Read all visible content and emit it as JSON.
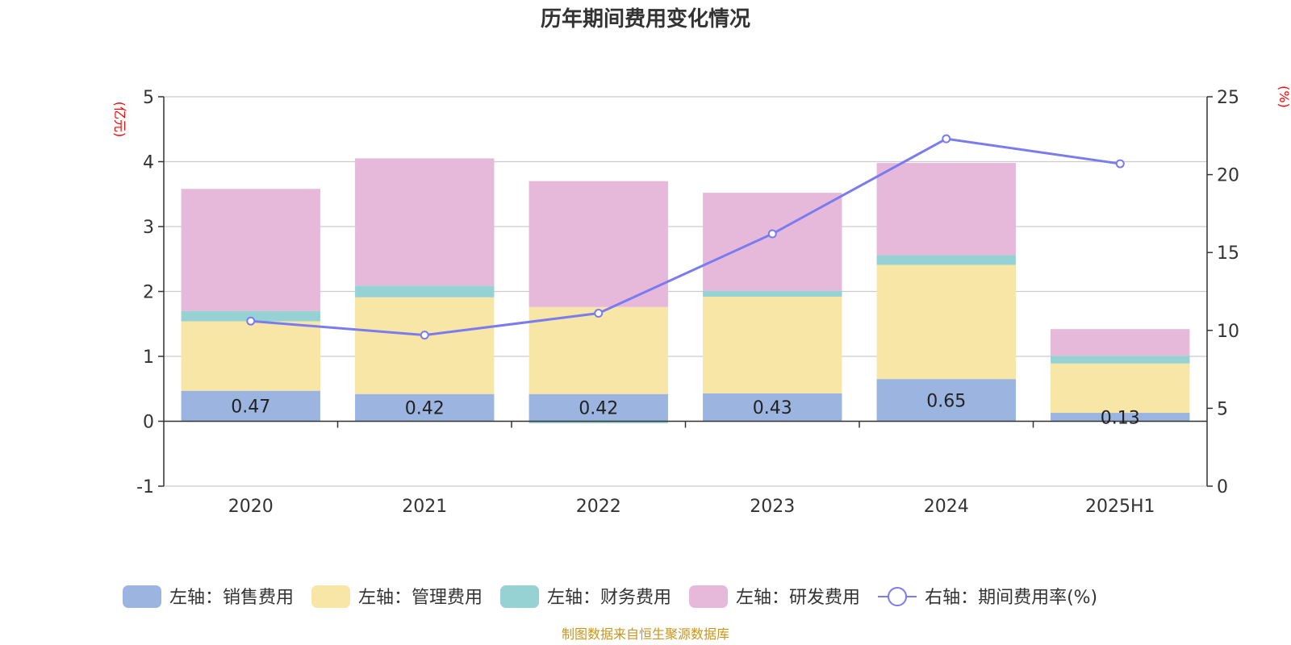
{
  "chart_data": {
    "type": "bar",
    "stacked": true,
    "title": "历年期间费用变化情况",
    "categories": [
      "2020",
      "2021",
      "2022",
      "2023",
      "2024",
      "2025H1"
    ],
    "left_axis": {
      "unit": "(亿元)",
      "ylim": [
        -1,
        5
      ],
      "ticks": [
        "-1",
        "0",
        "1",
        "2",
        "3",
        "4",
        "5"
      ]
    },
    "right_axis": {
      "unit": "(%)",
      "ylim": [
        0,
        25
      ],
      "ticks": [
        "0",
        "5",
        "10",
        "15",
        "20",
        "25"
      ]
    },
    "series": [
      {
        "name": "左轴：销售费用",
        "axis": "left",
        "type": "bar",
        "color": "#9bb5e0",
        "values": [
          0.47,
          0.42,
          0.42,
          0.43,
          0.65,
          0.13
        ],
        "labels": [
          "0.47",
          "0.42",
          "0.42",
          "0.43",
          "0.65",
          "0.13"
        ]
      },
      {
        "name": "左轴：管理费用",
        "axis": "left",
        "type": "bar",
        "color": "#f7e6a6",
        "values": [
          1.07,
          1.49,
          1.34,
          1.49,
          1.76,
          0.76
        ]
      },
      {
        "name": "左轴：财务费用",
        "axis": "left",
        "type": "bar",
        "color": "#96d2d4",
        "values": [
          0.16,
          0.18,
          -0.03,
          0.09,
          0.15,
          0.12
        ]
      },
      {
        "name": "左轴：研发费用",
        "axis": "left",
        "type": "bar",
        "color": "#e6b9da",
        "values": [
          1.88,
          1.96,
          1.94,
          1.51,
          1.42,
          0.41
        ]
      },
      {
        "name": "右轴：期间费用率(%)",
        "axis": "right",
        "type": "line",
        "color": "#7b7bf0",
        "values": [
          10.6,
          9.7,
          11.1,
          16.2,
          22.3,
          20.7
        ]
      }
    ],
    "grid": true,
    "legend_position": "bottom"
  },
  "source_note": "制图数据来自恒生聚源数据库"
}
